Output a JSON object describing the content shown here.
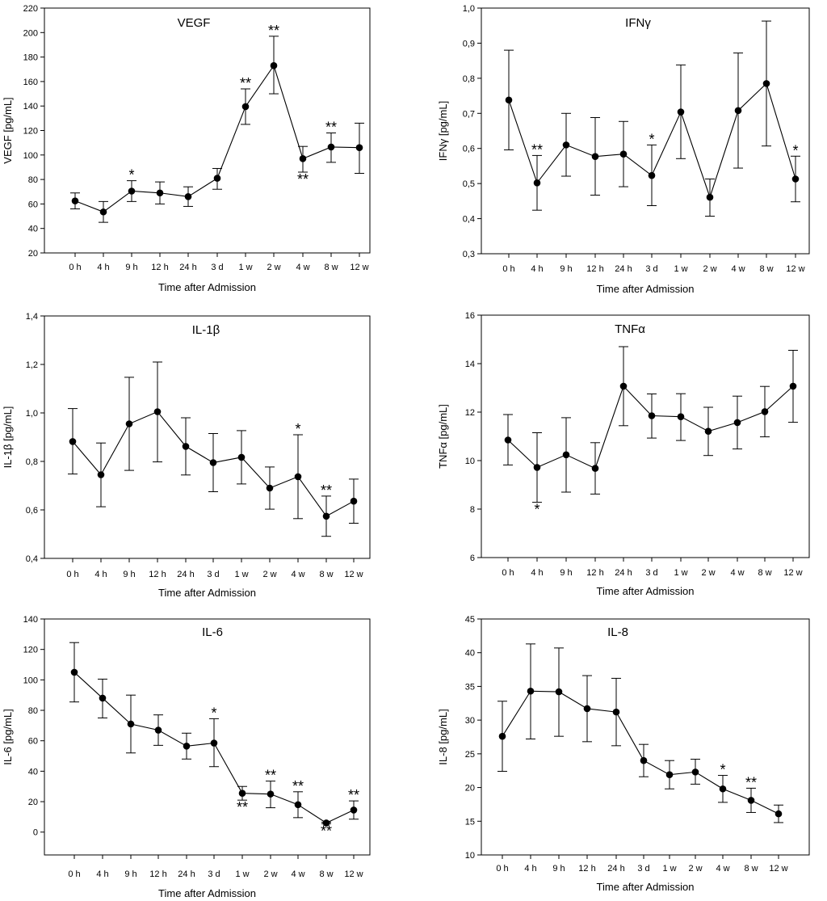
{
  "chart_data": [
    {
      "type": "line",
      "title": "VEGF",
      "xlabel": "Time after Admission",
      "ylabel": "VEGF [pg/mL]",
      "categories": [
        "0 h",
        "4 h",
        "9 h",
        "12 h",
        "24 h",
        "3 d",
        "1 w",
        "2 w",
        "4 w",
        "8 w",
        "12 w"
      ],
      "values": [
        62.5,
        53.5,
        70.5,
        69,
        66,
        81,
        139.5,
        173,
        97,
        106.5,
        106
      ],
      "err_upper": [
        69,
        62,
        79,
        78,
        74,
        89,
        154,
        197,
        107,
        118,
        126
      ],
      "err_lower": [
        56,
        45,
        62,
        60,
        58,
        72,
        125,
        150,
        86,
        94,
        85
      ],
      "significance": [
        "",
        "",
        "*",
        "",
        "",
        "",
        "**",
        "**",
        "**",
        "**",
        ""
      ],
      "sig_position": [
        "",
        "",
        "above",
        "",
        "",
        "",
        "above",
        "above",
        "below",
        "above",
        ""
      ],
      "ylim": [
        20,
        220
      ],
      "yticks": [
        20,
        40,
        60,
        80,
        100,
        120,
        140,
        160,
        180,
        200,
        220
      ],
      "ytick_labels": [
        "20",
        "40",
        "60",
        "80",
        "100",
        "120",
        "140",
        "160",
        "180",
        "200",
        "220"
      ],
      "grid": false
    },
    {
      "type": "line",
      "title": "IFNγ",
      "xlabel": "Time after Admission",
      "ylabel": "IFNγ [pg/mL]",
      "categories": [
        "0 h",
        "4 h",
        "9 h",
        "12 h",
        "24 h",
        "3 d",
        "1 w",
        "2 w",
        "4 w",
        "8 w",
        "12 w"
      ],
      "values": [
        0.738,
        0.502,
        0.61,
        0.577,
        0.584,
        0.523,
        0.704,
        0.461,
        0.708,
        0.785,
        0.513
      ],
      "err_upper": [
        0.88,
        0.58,
        0.7,
        0.688,
        0.677,
        0.61,
        0.838,
        0.513,
        0.872,
        0.963,
        0.578
      ],
      "err_lower": [
        0.596,
        0.424,
        0.521,
        0.467,
        0.491,
        0.437,
        0.571,
        0.407,
        0.544,
        0.607,
        0.448
      ],
      "significance": [
        "",
        "**",
        "",
        "",
        "",
        "*",
        "",
        "",
        "",
        "",
        "*"
      ],
      "sig_position": [
        "",
        "above",
        "",
        "",
        "",
        "above",
        "",
        "",
        "",
        "",
        "above"
      ],
      "ylim": [
        0.3,
        1.0
      ],
      "yticks": [
        0.3,
        0.4,
        0.5,
        0.6,
        0.7,
        0.8,
        0.9,
        1.0
      ],
      "ytick_labels": [
        "0,3",
        "0,4",
        "0,5",
        "0,6",
        "0,7",
        "0,8",
        "0,9",
        "1,0"
      ],
      "grid": false
    },
    {
      "type": "line",
      "title": "IL-1β",
      "xlabel": "Time after Admission",
      "ylabel": "IL-1β [pg/mL]",
      "categories": [
        "0 h",
        "4 h",
        "9 h",
        "12 h",
        "24 h",
        "3 d",
        "1 w",
        "2 w",
        "4 w",
        "8 w",
        "12 w"
      ],
      "values": [
        0.882,
        0.745,
        0.955,
        1.005,
        0.862,
        0.795,
        0.817,
        0.69,
        0.737,
        0.574,
        0.636
      ],
      "err_upper": [
        1.018,
        0.876,
        1.147,
        1.21,
        0.98,
        0.915,
        0.927,
        0.777,
        0.91,
        0.657,
        0.727
      ],
      "err_lower": [
        0.748,
        0.613,
        0.763,
        0.798,
        0.744,
        0.675,
        0.707,
        0.603,
        0.564,
        0.491,
        0.545
      ],
      "significance": [
        "",
        "",
        "",
        "",
        "",
        "",
        "",
        "",
        "*",
        "**",
        ""
      ],
      "sig_position": [
        "",
        "",
        "",
        "",
        "",
        "",
        "",
        "",
        "above",
        "above",
        ""
      ],
      "ylim": [
        0.4,
        1.4
      ],
      "yticks": [
        0.4,
        0.6,
        0.8,
        1.0,
        1.2,
        1.4
      ],
      "ytick_labels": [
        "0,4",
        "0,6",
        "0,8",
        "1,0",
        "1,2",
        "1,4"
      ],
      "grid": false
    },
    {
      "type": "line",
      "title": "TNFα",
      "xlabel": "Time after Admission",
      "ylabel": "TNFα [pg/mL]",
      "categories": [
        "0 h",
        "4 h",
        "9 h",
        "12 h",
        "24 h",
        "3 d",
        "1 w",
        "2 w",
        "4 w",
        "8 w",
        "12 w"
      ],
      "values": [
        10.85,
        9.72,
        10.24,
        9.68,
        13.07,
        11.85,
        11.81,
        11.21,
        11.57,
        12.02,
        13.07
      ],
      "err_upper": [
        11.9,
        11.15,
        11.77,
        10.74,
        14.7,
        12.75,
        12.76,
        12.2,
        12.66,
        13.06,
        14.55
      ],
      "err_lower": [
        9.82,
        8.28,
        8.7,
        8.62,
        11.44,
        10.93,
        10.83,
        10.21,
        10.48,
        10.98,
        11.58
      ],
      "significance": [
        "",
        "*",
        "",
        "",
        "",
        "",
        "",
        "",
        "",
        "",
        ""
      ],
      "sig_position": [
        "",
        "below",
        "",
        "",
        "",
        "",
        "",
        "",
        "",
        "",
        ""
      ],
      "ylim": [
        6,
        16
      ],
      "yticks": [
        6,
        8,
        10,
        12,
        14,
        16
      ],
      "ytick_labels": [
        "6",
        "8",
        "10",
        "12",
        "14",
        "16"
      ],
      "grid": false
    },
    {
      "type": "line",
      "title": "IL-6",
      "xlabel": "Time after Admission",
      "ylabel": "IL-6 [pg/mL]",
      "categories": [
        "0 h",
        "4 h",
        "9 h",
        "12 h",
        "24 h",
        "3 d",
        "1 w",
        "2 w",
        "4 w",
        "8 w",
        "12 w"
      ],
      "values": [
        105,
        88,
        71,
        67,
        56.5,
        58.5,
        25.5,
        25,
        18,
        6,
        14.5
      ],
      "err_upper": [
        124.5,
        100.5,
        90,
        77,
        65,
        74.5,
        30,
        33.5,
        26.5,
        6.5,
        20.5
      ],
      "err_lower": [
        85.5,
        75,
        52,
        57,
        48,
        43,
        21,
        16,
        9.5,
        5.5,
        8.5
      ],
      "significance": [
        "",
        "",
        "",
        "",
        "",
        "*",
        "**",
        "**",
        "**",
        "**",
        "**"
      ],
      "sig_position": [
        "",
        "",
        "",
        "",
        "",
        "above",
        "below",
        "above",
        "above",
        "below",
        "above"
      ],
      "ylim": [
        -15,
        140
      ],
      "yticks": [
        0,
        20,
        40,
        60,
        80,
        100,
        120,
        140
      ],
      "ytick_labels": [
        "0",
        "20",
        "40",
        "60",
        "80",
        "100",
        "120",
        "140"
      ],
      "grid": false
    },
    {
      "type": "line",
      "title": "IL-8",
      "xlabel": "Time after Admission",
      "ylabel": "IL-8 [pg/mL]",
      "categories": [
        "0 h",
        "4 h",
        "9 h",
        "12 h",
        "24 h",
        "3 d",
        "1 w",
        "2 w",
        "4 w",
        "8 w",
        "12 w"
      ],
      "values": [
        27.6,
        34.3,
        34.2,
        31.7,
        31.2,
        24.0,
        21.9,
        22.3,
        19.8,
        18.1,
        16.1
      ],
      "err_upper": [
        32.8,
        41.3,
        40.7,
        36.6,
        36.2,
        26.4,
        24.0,
        24.2,
        21.8,
        19.9,
        17.4
      ],
      "err_lower": [
        22.4,
        27.2,
        27.6,
        26.8,
        26.2,
        21.6,
        19.8,
        20.5,
        17.8,
        16.3,
        14.8
      ],
      "significance": [
        "",
        "",
        "",
        "",
        "",
        "",
        "",
        "",
        "*",
        "**",
        ""
      ],
      "sig_position": [
        "",
        "",
        "",
        "",
        "",
        "",
        "",
        "",
        "above",
        "above",
        ""
      ],
      "ylim": [
        10,
        45
      ],
      "yticks": [
        10,
        15,
        20,
        25,
        30,
        35,
        40,
        45
      ],
      "ytick_labels": [
        "10",
        "15",
        "20",
        "25",
        "30",
        "35",
        "40",
        "45"
      ],
      "grid": false
    }
  ]
}
